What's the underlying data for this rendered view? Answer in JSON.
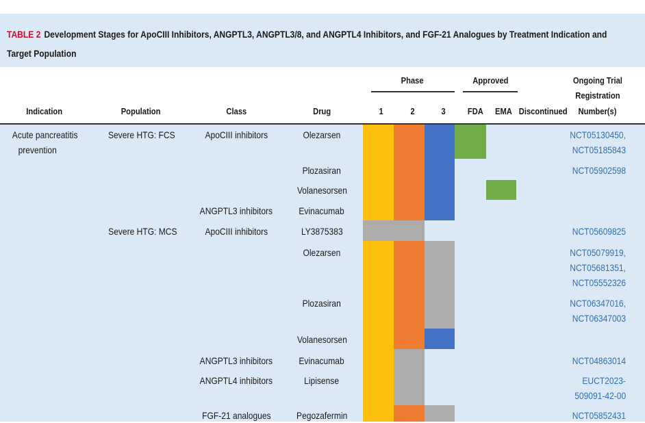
{
  "caption": {
    "label": "TABLE 2",
    "text": "Development Stages for ApoCIII Inhibitors, ANGPTL3, ANGPTL3/8, and ANGPTL4 Inhibitors, and FGF-21 Analogues by Treatment Indication and Target Population"
  },
  "headers": {
    "indication": "Indication",
    "population": "Population",
    "class": "Class",
    "drug": "Drug",
    "phase": "Phase",
    "phase1": "1",
    "phase2": "2",
    "phase3": "3",
    "approved": "Approved",
    "fda": "FDA",
    "ema": "EMA",
    "discontinued": "Discontinued",
    "trial_line1": "Ongoing Trial",
    "trial_line2": "Registration",
    "trial_line3": "Number(s)"
  },
  "colors": {
    "phase1": "#fdc010",
    "phase2": "#ef7d31",
    "phase3": "#4472c4",
    "approved": "#70ad47",
    "discontinued": "#aeabab",
    "link": "#2f6fb5",
    "body_bg": "#dbe9f6"
  },
  "indication": {
    "line1": "Acute pancreatitis",
    "line2": "prevention"
  },
  "populations": [
    "Severe HTG: FCS",
    "Severe HTG: MCS"
  ],
  "rows": [
    {
      "class": "ApoCIII inhibitors",
      "drug": "Olezarsen",
      "trials": [
        "NCT05130450,",
        "NCT05185843"
      ]
    },
    {
      "class": "",
      "drug": "Plozasiran",
      "trials": [
        "NCT05902598"
      ]
    },
    {
      "class": "",
      "drug": "Volanesorsen",
      "trials": []
    },
    {
      "class": "ANGPTL3 inhibitors",
      "drug": "Evinacumab",
      "trials": []
    },
    {
      "class": "ApoCIII inhibitors",
      "drug": "LY3875383",
      "trials": [
        "NCT05609825"
      ]
    },
    {
      "class": "",
      "drug": "Olezarsen",
      "trials": [
        "NCT05079919,",
        "NCT05681351,",
        "NCT05552326"
      ]
    },
    {
      "class": "",
      "drug": "Plozasiran",
      "trials": [
        "NCT06347016,",
        "NCT06347003"
      ]
    },
    {
      "class": "",
      "drug": "Volanesorsen",
      "trials": []
    },
    {
      "class": "ANGPTL3 inhibitors",
      "drug": "Evinacumab",
      "trials": [
        "NCT04863014"
      ]
    },
    {
      "class": "ANGPTL4 inhibitors",
      "drug": "Lipisense",
      "trials": [
        "EUCT2023-",
        "509091-42-00"
      ]
    },
    {
      "class": "FGF-21 analogues",
      "drug": "Pegozafermin",
      "trials": [
        "NCT05852431"
      ]
    }
  ]
}
